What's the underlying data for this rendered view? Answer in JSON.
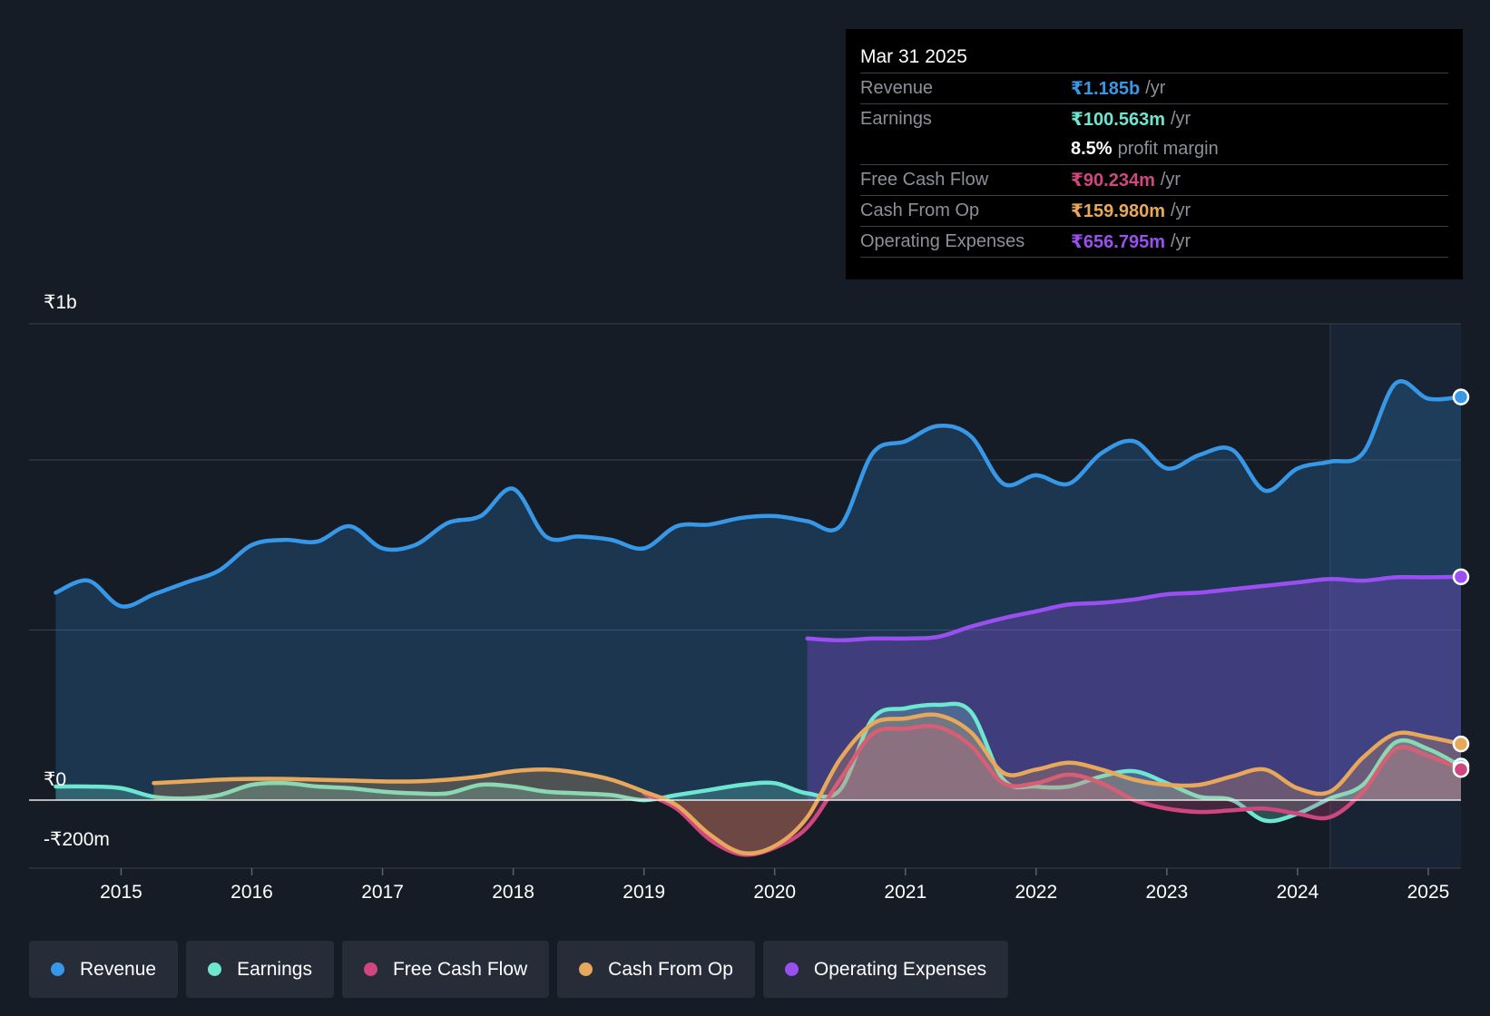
{
  "tooltip": {
    "date": "Mar 31 2025",
    "rows": [
      {
        "label": "Revenue",
        "value": "₹1.185b",
        "unit": "/yr",
        "color": "#3898e8"
      },
      {
        "label": "Earnings",
        "value": "₹100.563m",
        "unit": "/yr",
        "color": "#6ee7d2"
      },
      {
        "label": "Free Cash Flow",
        "value": "₹90.234m",
        "unit": "/yr",
        "color": "#d0477f"
      },
      {
        "label": "Cash From Op",
        "value": "₹159.980m",
        "unit": "/yr",
        "color": "#e8a85c"
      },
      {
        "label": "Operating Expenses",
        "value": "₹656.795m",
        "unit": "/yr",
        "color": "#9a4ff0"
      }
    ],
    "profit_margin": {
      "value": "8.5%",
      "label": "profit margin"
    }
  },
  "legend": [
    {
      "label": "Revenue",
      "color": "#3898e8"
    },
    {
      "label": "Earnings",
      "color": "#6ee7d2"
    },
    {
      "label": "Free Cash Flow",
      "color": "#d0477f"
    },
    {
      "label": "Cash From Op",
      "color": "#e8a85c"
    },
    {
      "label": "Operating Expenses",
      "color": "#9a4ff0"
    }
  ],
  "chart_data": {
    "type": "area",
    "ylim": [
      -400,
      2800
    ],
    "ylabels": [
      {
        "value": 2800,
        "label": "₹1b"
      },
      {
        "value": 0,
        "label": "₹0"
      },
      {
        "value": -400,
        "label": "-₹200m"
      }
    ],
    "xlim": [
      2014.74,
      2025.25
    ],
    "xticks": [
      2015,
      2016,
      2017,
      2018,
      2019,
      2020,
      2021,
      2022,
      2023,
      2024,
      2025
    ],
    "highlight_from": 2024.25,
    "series": [
      {
        "name": "Revenue",
        "color": "#3898e8",
        "fill": true,
        "x": [
          2014.5,
          2014.75,
          2015.0,
          2015.25,
          2015.5,
          2015.75,
          2016.0,
          2016.25,
          2016.5,
          2016.75,
          2017.0,
          2017.25,
          2017.5,
          2017.75,
          2018.0,
          2018.25,
          2018.5,
          2018.75,
          2019.0,
          2019.25,
          2019.5,
          2019.75,
          2020.0,
          2020.25,
          2020.5,
          2020.75,
          2021.0,
          2021.25,
          2021.5,
          2021.75,
          2022.0,
          2022.25,
          2022.5,
          2022.75,
          2023.0,
          2023.25,
          2023.5,
          2023.75,
          2024.0,
          2024.25,
          2024.5,
          2024.75,
          2025.0,
          2025.25
        ],
        "values": [
          1220,
          1290,
          1140,
          1210,
          1280,
          1350,
          1500,
          1530,
          1520,
          1610,
          1480,
          1500,
          1630,
          1670,
          1830,
          1550,
          1550,
          1530,
          1480,
          1610,
          1620,
          1660,
          1670,
          1640,
          1610,
          2040,
          2110,
          2200,
          2140,
          1860,
          1910,
          1860,
          2040,
          2110,
          1950,
          2030,
          2060,
          1820,
          1950,
          1990,
          2040,
          2450,
          2360,
          2370
        ]
      },
      {
        "name": "Operating Expenses",
        "color": "#9a4ff0",
        "fill": true,
        "x": [
          2020.25,
          2020.5,
          2020.75,
          2021.0,
          2021.25,
          2021.5,
          2021.75,
          2022.0,
          2022.25,
          2022.5,
          2022.75,
          2023.0,
          2023.25,
          2023.5,
          2023.75,
          2024.0,
          2024.25,
          2024.5,
          2024.75,
          2025.0,
          2025.25
        ],
        "values": [
          950,
          940,
          950,
          950,
          960,
          1020,
          1070,
          1110,
          1150,
          1160,
          1180,
          1210,
          1220,
          1240,
          1260,
          1280,
          1300,
          1290,
          1310,
          1310,
          1313
        ]
      },
      {
        "name": "Earnings",
        "color": "#6ee7d2",
        "fill": true,
        "x": [
          2014.5,
          2014.75,
          2015.0,
          2015.25,
          2015.5,
          2015.75,
          2016.0,
          2016.25,
          2016.5,
          2016.75,
          2017.0,
          2017.25,
          2017.5,
          2017.75,
          2018.0,
          2018.25,
          2018.5,
          2018.75,
          2019.0,
          2019.25,
          2019.5,
          2019.75,
          2020.0,
          2020.25,
          2020.5,
          2020.75,
          2021.0,
          2021.25,
          2021.5,
          2021.75,
          2022.0,
          2022.25,
          2022.5,
          2022.75,
          2023.0,
          2023.25,
          2023.5,
          2023.75,
          2024.0,
          2024.25,
          2024.5,
          2024.75,
          2025.0,
          2025.25
        ],
        "values": [
          80,
          80,
          70,
          20,
          10,
          30,
          90,
          100,
          80,
          70,
          50,
          40,
          40,
          90,
          80,
          50,
          40,
          30,
          0,
          30,
          60,
          90,
          100,
          40,
          60,
          480,
          540,
          560,
          520,
          120,
          80,
          80,
          140,
          170,
          100,
          20,
          0,
          -120,
          -80,
          10,
          90,
          340,
          300,
          200
        ]
      },
      {
        "name": "Free Cash Flow",
        "color": "#d0477f",
        "fill": true,
        "x": [
          2019.0,
          2019.25,
          2019.5,
          2019.75,
          2020.0,
          2020.25,
          2020.5,
          2020.75,
          2021.0,
          2021.25,
          2021.5,
          2021.75,
          2022.0,
          2022.25,
          2022.5,
          2022.75,
          2023.0,
          2023.25,
          2023.5,
          2023.75,
          2024.0,
          2024.25,
          2024.5,
          2024.75,
          2025.0,
          2025.25
        ],
        "values": [
          40,
          -50,
          -230,
          -320,
          -280,
          -160,
          120,
          390,
          420,
          430,
          320,
          100,
          100,
          150,
          100,
          0,
          -50,
          -70,
          -60,
          -50,
          -80,
          -100,
          50,
          300,
          260,
          180
        ]
      },
      {
        "name": "Cash From Op",
        "color": "#e8a85c",
        "fill": true,
        "x": [
          2015.25,
          2015.5,
          2015.75,
          2016.0,
          2016.25,
          2016.5,
          2016.75,
          2017.0,
          2017.25,
          2017.5,
          2017.75,
          2018.0,
          2018.25,
          2018.5,
          2018.75,
          2019.0,
          2019.25,
          2019.5,
          2019.75,
          2020.0,
          2020.25,
          2020.5,
          2020.75,
          2021.0,
          2021.25,
          2021.5,
          2021.75,
          2022.0,
          2022.25,
          2022.5,
          2022.75,
          2023.0,
          2023.25,
          2023.5,
          2023.75,
          2024.0,
          2024.25,
          2024.5,
          2024.75,
          2025.0,
          2025.25
        ],
        "values": [
          100,
          110,
          120,
          125,
          125,
          120,
          115,
          110,
          110,
          120,
          140,
          170,
          180,
          160,
          120,
          50,
          -30,
          -200,
          -310,
          -270,
          -100,
          240,
          450,
          480,
          500,
          400,
          160,
          180,
          220,
          180,
          120,
          90,
          90,
          140,
          180,
          70,
          50,
          250,
          390,
          370,
          330
        ]
      }
    ]
  }
}
